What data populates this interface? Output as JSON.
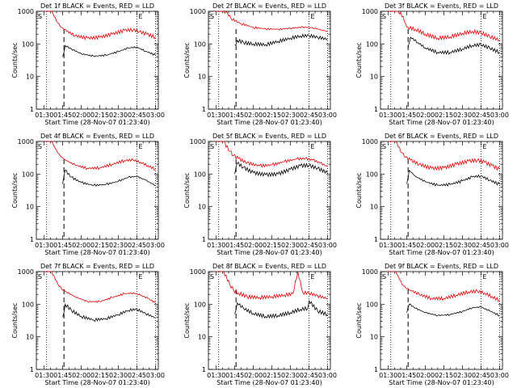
{
  "chart_data": [
    {
      "type": "line",
      "title": "Det 1f BLACK = Events, RED = LLD",
      "xlabel": "Start Time (28-Nov-07 01:23:40)",
      "ylabel": "Counts/sec",
      "yscale": "log",
      "ylim": [
        1,
        1000
      ],
      "yticks": [
        "1",
        "10",
        "100",
        "1000"
      ],
      "xticks": [
        "01:30",
        "01:45",
        "02:00",
        "02:15",
        "02:30",
        "02:45",
        "03:00"
      ],
      "marker_s": "S",
      "marker_e": "E",
      "series": [
        {
          "name": "LLD",
          "color": "#e00000",
          "x": [
            "01:30",
            "01:36",
            "01:41",
            "01:44",
            "01:48",
            "01:55",
            "02:05",
            "02:15",
            "02:25",
            "02:35",
            "02:42",
            "02:47",
            "02:53",
            "03:00"
          ],
          "values": [
            1000,
            1000,
            450,
            320,
            250,
            180,
            150,
            160,
            200,
            260,
            270,
            240,
            200,
            160
          ]
        },
        {
          "name": "Events",
          "color": "#000000",
          "x": [
            "01:45",
            "01:47",
            "01:52",
            "02:00",
            "02:10",
            "02:20",
            "02:30",
            "02:38",
            "02:45",
            "02:52",
            "03:00"
          ],
          "values": [
            40,
            90,
            70,
            50,
            42,
            45,
            58,
            75,
            80,
            60,
            45
          ]
        }
      ],
      "vlines_dotted": [
        "01:32",
        "02:45",
        "03:00"
      ],
      "vline_dashed": "01:46"
    },
    {
      "type": "line",
      "title": "Det 2f BLACK = Events, RED = LLD",
      "xlabel": "Start Time (28-Nov-07 01:23:40)",
      "ylabel": "Counts/sec",
      "yscale": "log",
      "ylim": [
        1,
        1000
      ],
      "yticks": [
        "1",
        "10",
        "100",
        "1000"
      ],
      "xticks": [
        "01:30",
        "01:45",
        "02:00",
        "02:15",
        "02:30",
        "02:45",
        "03:00"
      ],
      "marker_s": "S",
      "marker_e": "E",
      "series": [
        {
          "name": "LLD",
          "color": "#e00000",
          "x": [
            "01:30",
            "01:33",
            "01:36",
            "01:39",
            "01:42",
            "01:50",
            "02:00",
            "02:10",
            "02:20",
            "02:30",
            "02:40",
            "02:48",
            "02:55",
            "03:00"
          ],
          "values": [
            1000,
            1000,
            1000,
            900,
            600,
            420,
            320,
            290,
            280,
            300,
            330,
            310,
            270,
            240
          ]
        },
        {
          "name": "Events",
          "color": "#000000",
          "x": [
            "01:45",
            "01:47",
            "01:52",
            "02:00",
            "02:10",
            "02:20",
            "02:30",
            "02:38",
            "02:45",
            "02:52",
            "03:00"
          ],
          "values": [
            90,
            130,
            110,
            100,
            95,
            120,
            150,
            175,
            180,
            160,
            140
          ]
        }
      ],
      "vlines_dotted": [
        "01:32",
        "02:45",
        "03:00"
      ],
      "vline_dashed": "01:46"
    },
    {
      "type": "line",
      "title": "Det 3f BLACK = Events, RED = LLD",
      "xlabel": "Start Time (28-Nov-07 01:23:40)",
      "ylabel": "Counts/sec",
      "yscale": "log",
      "ylim": [
        1,
        1000
      ],
      "yticks": [
        "1",
        "10",
        "100",
        "1000"
      ],
      "xticks": [
        "01:30",
        "01:45",
        "02:00",
        "02:15",
        "02:30",
        "02:45",
        "03:00"
      ],
      "marker_s": "S",
      "marker_e": "E",
      "series": [
        {
          "name": "LLD",
          "color": "#e00000",
          "x": [
            "01:30",
            "01:38",
            "01:42",
            "01:44",
            "01:46",
            "01:52",
            "02:00",
            "02:10",
            "02:20",
            "02:30",
            "02:38",
            "02:45",
            "02:52",
            "03:00"
          ],
          "values": [
            1000,
            1000,
            700,
            420,
            320,
            280,
            200,
            150,
            165,
            210,
            240,
            220,
            170,
            130
          ]
        },
        {
          "name": "Events",
          "color": "#000000",
          "x": [
            "01:46",
            "01:48",
            "01:54",
            "02:00",
            "02:10",
            "02:20",
            "02:30",
            "02:38",
            "02:45",
            "02:52",
            "03:00"
          ],
          "values": [
            80,
            160,
            110,
            75,
            55,
            55,
            70,
            90,
            95,
            75,
            55
          ]
        }
      ],
      "vlines_dotted": [
        "01:32",
        "02:45",
        "03:00"
      ],
      "vline_dashed": "01:46"
    },
    {
      "type": "line",
      "title": "Det 4f BLACK = Events, RED = LLD",
      "xlabel": "Start Time (28-Nov-07 01:23:40)",
      "ylabel": "Counts/sec",
      "yscale": "log",
      "ylim": [
        1,
        1000
      ],
      "yticks": [
        "1",
        "10",
        "100",
        "1000"
      ],
      "xticks": [
        "01:30",
        "01:45",
        "02:00",
        "02:15",
        "02:30",
        "02:45",
        "03:00"
      ],
      "marker_s": "S",
      "marker_e": "E",
      "series": [
        {
          "name": "LLD",
          "color": "#e00000",
          "x": [
            "01:30",
            "01:36",
            "01:41",
            "01:44",
            "01:48",
            "01:55",
            "02:05",
            "02:15",
            "02:25",
            "02:35",
            "02:42",
            "02:48",
            "02:54",
            "03:00"
          ],
          "values": [
            1000,
            1000,
            450,
            330,
            260,
            190,
            150,
            155,
            200,
            260,
            270,
            230,
            180,
            140
          ]
        },
        {
          "name": "Events",
          "color": "#000000",
          "x": [
            "01:45",
            "01:47",
            "01:52",
            "02:00",
            "02:10",
            "02:20",
            "02:30",
            "02:38",
            "02:45",
            "02:52",
            "03:00"
          ],
          "values": [
            50,
            130,
            80,
            55,
            45,
            48,
            60,
            80,
            85,
            65,
            45
          ]
        }
      ],
      "vlines_dotted": [
        "01:32",
        "02:45",
        "03:00"
      ],
      "vline_dashed": "01:46"
    },
    {
      "type": "line",
      "title": "Det 5f BLACK = Events, RED = LLD",
      "xlabel": "Start Time (28-Nov-07 01:23:40)",
      "ylabel": "Counts/sec",
      "yscale": "log",
      "ylim": [
        1,
        1000
      ],
      "yticks": [
        "1",
        "10",
        "100",
        "1000"
      ],
      "xticks": [
        "01:30",
        "01:45",
        "02:00",
        "02:15",
        "02:30",
        "02:45",
        "03:00"
      ],
      "marker_s": "S",
      "marker_e": "E",
      "series": [
        {
          "name": "LLD",
          "color": "#e00000",
          "x": [
            "01:30",
            "01:36",
            "01:41",
            "01:44",
            "01:48",
            "01:55",
            "02:05",
            "02:15",
            "02:25",
            "02:35",
            "02:42",
            "02:48",
            "02:54",
            "03:00"
          ],
          "values": [
            1000,
            1000,
            500,
            370,
            300,
            220,
            180,
            190,
            240,
            290,
            300,
            270,
            220,
            170
          ]
        },
        {
          "name": "Events",
          "color": "#000000",
          "x": [
            "01:45",
            "01:47",
            "01:52",
            "02:00",
            "02:10",
            "02:20",
            "02:30",
            "02:38",
            "02:45",
            "02:52",
            "03:00"
          ],
          "values": [
            100,
            220,
            160,
            110,
            95,
            100,
            140,
            180,
            185,
            150,
            110
          ]
        }
      ],
      "vlines_dotted": [
        "01:32",
        "02:45",
        "03:00"
      ],
      "vline_dashed": "01:46"
    },
    {
      "type": "line",
      "title": "Det 6f BLACK = Events, RED = LLD",
      "xlabel": "Start Time (28-Nov-07 01:23:40)",
      "ylabel": "Counts/sec",
      "yscale": "log",
      "ylim": [
        1,
        1000
      ],
      "yticks": [
        "1",
        "10",
        "100",
        "1000"
      ],
      "xticks": [
        "01:30",
        "01:45",
        "02:00",
        "02:15",
        "02:30",
        "02:45",
        "03:00"
      ],
      "marker_s": "S",
      "marker_e": "E",
      "series": [
        {
          "name": "LLD",
          "color": "#e00000",
          "x": [
            "01:30",
            "01:36",
            "01:41",
            "01:44",
            "01:48",
            "01:55",
            "02:05",
            "02:15",
            "02:25",
            "02:35",
            "02:42",
            "02:48",
            "02:54",
            "03:00"
          ],
          "values": [
            1000,
            1000,
            450,
            330,
            270,
            200,
            150,
            155,
            200,
            250,
            265,
            230,
            180,
            140
          ]
        },
        {
          "name": "Events",
          "color": "#000000",
          "x": [
            "01:45",
            "01:47",
            "01:52",
            "02:00",
            "02:10",
            "02:20",
            "02:30",
            "02:38",
            "02:45",
            "02:52",
            "03:00"
          ],
          "values": [
            50,
            130,
            85,
            58,
            45,
            48,
            62,
            82,
            88,
            65,
            48
          ]
        }
      ],
      "vlines_dotted": [
        "01:32",
        "02:45",
        "03:00"
      ],
      "vline_dashed": "01:46"
    },
    {
      "type": "line",
      "title": "Det 7f BLACK = Events, RED = LLD",
      "xlabel": "Start Time (28-Nov-07 01:23:40)",
      "ylabel": "Counts/sec",
      "yscale": "log",
      "ylim": [
        1,
        1000
      ],
      "yticks": [
        "1",
        "10",
        "100",
        "1000"
      ],
      "xticks": [
        "01:30",
        "01:45",
        "02:00",
        "02:15",
        "02:30",
        "02:45",
        "03:00"
      ],
      "marker_s": "S",
      "marker_e": "E",
      "series": [
        {
          "name": "LLD",
          "color": "#e00000",
          "x": [
            "01:30",
            "01:36",
            "01:41",
            "01:44",
            "01:48",
            "01:55",
            "02:05",
            "02:15",
            "02:25",
            "02:35",
            "02:42",
            "02:48",
            "02:54",
            "03:00"
          ],
          "values": [
            1000,
            1000,
            420,
            300,
            240,
            170,
            120,
            120,
            160,
            210,
            220,
            190,
            150,
            110
          ]
        },
        {
          "name": "Events",
          "color": "#000000",
          "x": [
            "01:45",
            "01:47",
            "01:52",
            "02:00",
            "02:10",
            "02:20",
            "02:30",
            "02:38",
            "02:45",
            "02:52",
            "03:00"
          ],
          "values": [
            40,
            100,
            65,
            42,
            33,
            36,
            48,
            65,
            70,
            52,
            38
          ]
        }
      ],
      "vlines_dotted": [
        "01:32",
        "02:45",
        "03:00"
      ],
      "vline_dashed": "01:46"
    },
    {
      "type": "line",
      "title": "Det 8f BLACK = Events, RED = LLD",
      "xlabel": "Start Time (28-Nov-07 01:23:40)",
      "ylabel": "Counts/sec",
      "yscale": "log",
      "ylim": [
        1,
        1000
      ],
      "yticks": [
        "1",
        "10",
        "100",
        "1000"
      ],
      "xticks": [
        "01:30",
        "01:45",
        "02:00",
        "02:15",
        "02:30",
        "02:45",
        "03:00"
      ],
      "marker_s": "S",
      "marker_e": "E",
      "series": [
        {
          "name": "LLD",
          "color": "#e00000",
          "x": [
            "01:30",
            "01:36",
            "01:41",
            "01:44",
            "01:48",
            "01:55",
            "02:05",
            "02:15",
            "02:25",
            "02:32",
            "02:36",
            "02:40",
            "02:45",
            "02:52",
            "03:00"
          ],
          "values": [
            1000,
            1000,
            400,
            270,
            220,
            170,
            160,
            170,
            190,
            210,
            1000,
            230,
            220,
            180,
            150
          ]
        },
        {
          "name": "Events",
          "color": "#000000",
          "x": [
            "01:45",
            "01:47",
            "01:52",
            "02:00",
            "02:10",
            "02:20",
            "02:30",
            "02:38",
            "02:44",
            "02:45",
            "02:52",
            "03:00"
          ],
          "values": [
            50,
            110,
            75,
            52,
            42,
            45,
            55,
            70,
            75,
            130,
            62,
            48
          ]
        }
      ],
      "vlines_dotted": [
        "01:32",
        "02:45",
        "03:00"
      ],
      "vline_dashed": "01:46"
    },
    {
      "type": "line",
      "title": "Det 9f BLACK = Events, RED = LLD",
      "xlabel": "Start Time (28-Nov-07 01:23:40)",
      "ylabel": "Counts/sec",
      "yscale": "log",
      "ylim": [
        1,
        1000
      ],
      "yticks": [
        "1",
        "10",
        "100",
        "1000"
      ],
      "xticks": [
        "01:30",
        "01:45",
        "02:00",
        "02:15",
        "02:30",
        "02:45",
        "03:00"
      ],
      "marker_s": "S",
      "marker_e": "E",
      "series": [
        {
          "name": "LLD",
          "color": "#e00000",
          "x": [
            "01:30",
            "01:36",
            "01:41",
            "01:44",
            "01:48",
            "01:55",
            "02:05",
            "02:15",
            "02:25",
            "02:35",
            "02:42",
            "02:48",
            "02:54",
            "03:00"
          ],
          "values": [
            1000,
            1000,
            420,
            320,
            270,
            200,
            150,
            150,
            190,
            240,
            250,
            220,
            170,
            130
          ]
        },
        {
          "name": "Events",
          "color": "#000000",
          "x": [
            "01:45",
            "01:47",
            "01:52",
            "02:00",
            "02:10",
            "02:20",
            "02:30",
            "02:38",
            "02:45",
            "02:52",
            "03:00"
          ],
          "values": [
            55,
            100,
            75,
            55,
            45,
            48,
            60,
            78,
            82,
            62,
            45
          ]
        }
      ],
      "vlines_dotted": [
        "01:32",
        "02:45",
        "03:00"
      ],
      "vline_dashed": "01:46"
    }
  ]
}
